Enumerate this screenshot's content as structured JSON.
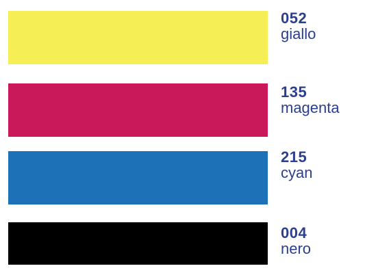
{
  "swatches": [
    {
      "code": "052",
      "name": "giallo",
      "color": "#f5ef55"
    },
    {
      "code": "135",
      "name": "magenta",
      "color": "#c9195a"
    },
    {
      "code": "215",
      "name": "cyan",
      "color": "#1d71b6"
    },
    {
      "code": "004",
      "name": "nero",
      "color": "#000000"
    }
  ]
}
